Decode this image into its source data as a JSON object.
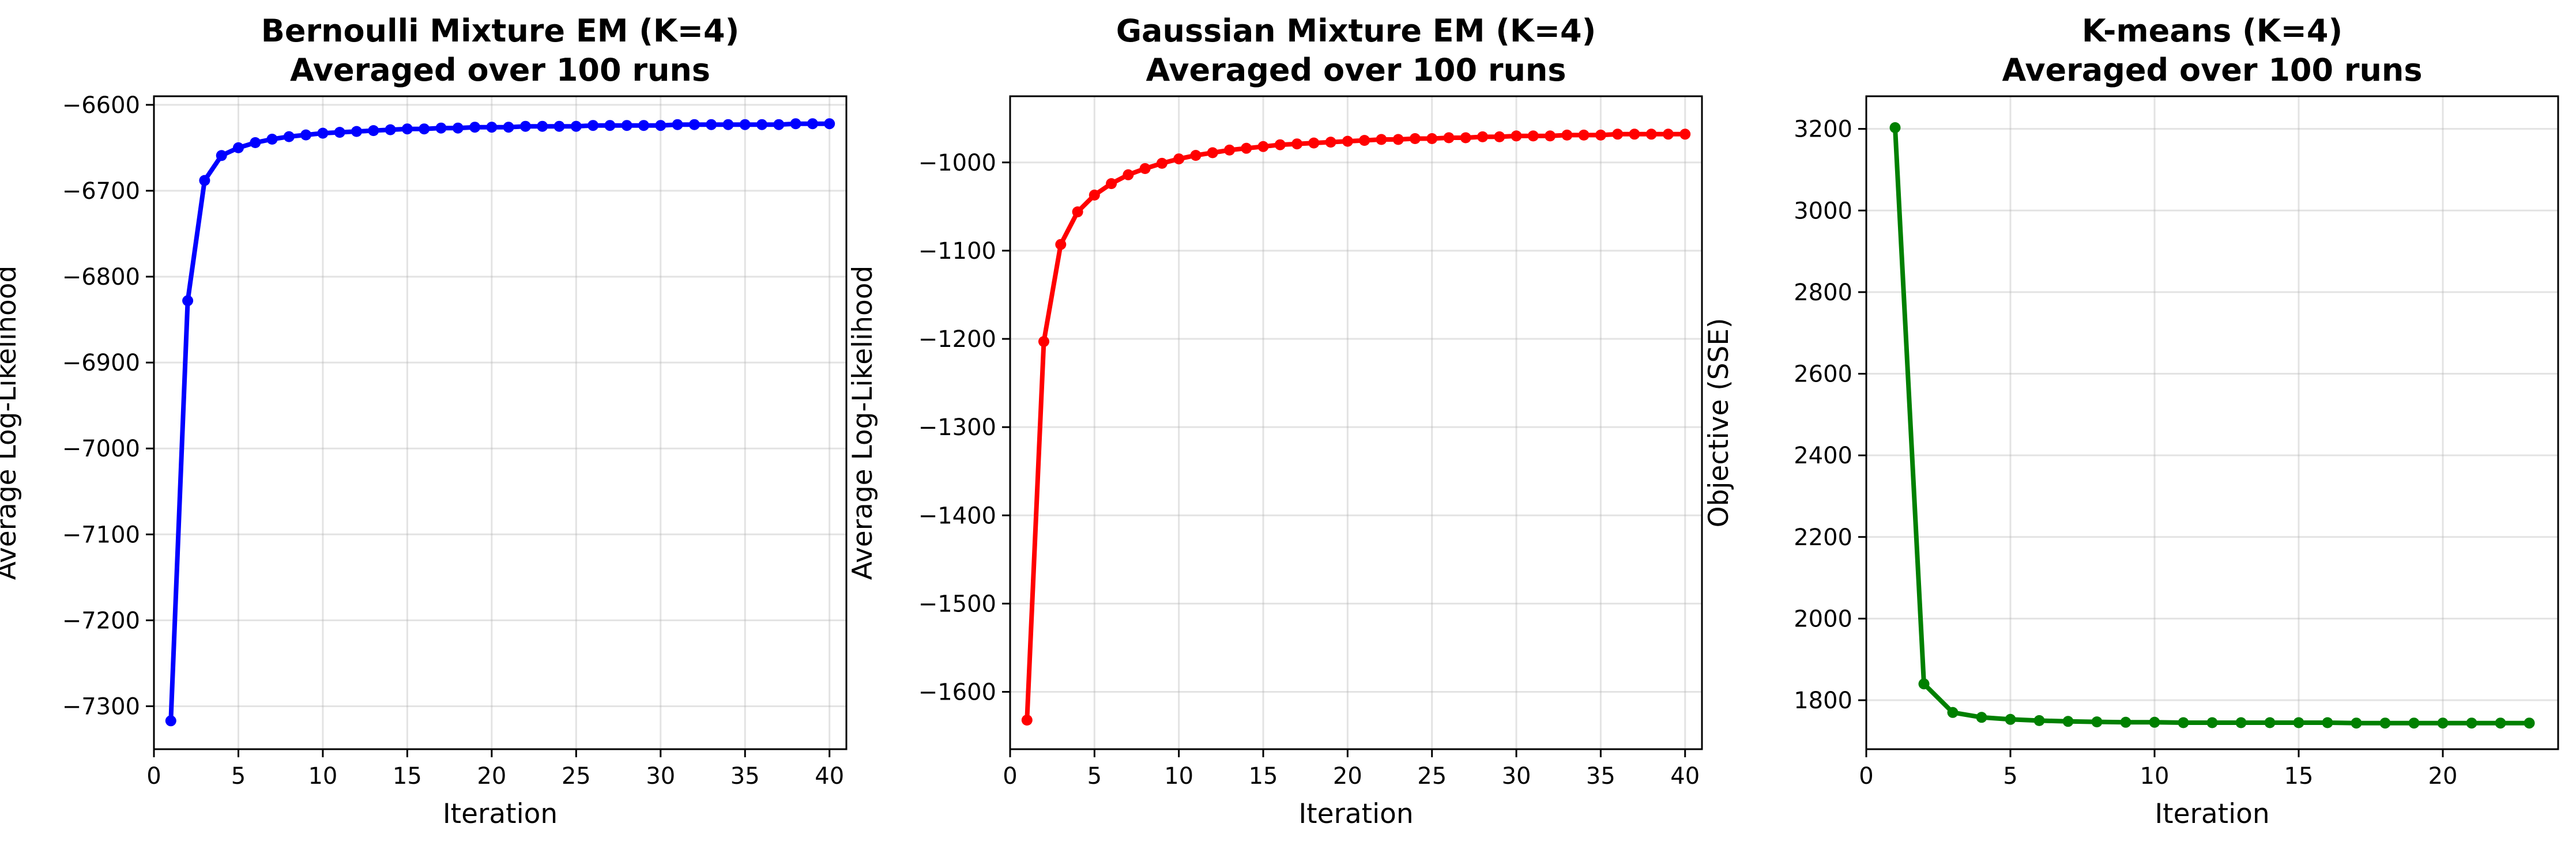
{
  "chart_data": [
    {
      "type": "line",
      "title": [
        "Bernoulli Mixture EM (K=4)",
        "Averaged over 100 runs"
      ],
      "xlabel": "Iteration",
      "ylabel": "Average Log-Likelihood",
      "xlim": [
        0,
        41
      ],
      "ylim": [
        -7350,
        -6590
      ],
      "xticks": [
        0,
        5,
        10,
        15,
        20,
        25,
        30,
        35,
        40
      ],
      "yticks": [
        -7300,
        -7200,
        -7100,
        -7000,
        -6900,
        -6800,
        -6700,
        -6600
      ],
      "grid": true,
      "color": "#0000ff",
      "series": [
        {
          "x": [
            1,
            2,
            3,
            4,
            5,
            6,
            7,
            8,
            9,
            10,
            11,
            12,
            13,
            14,
            15,
            16,
            17,
            18,
            19,
            20,
            21,
            22,
            23,
            24,
            25,
            26,
            27,
            28,
            29,
            30,
            31,
            32,
            33,
            34,
            35,
            36,
            37,
            38,
            39,
            40
          ],
          "values": [
            -7317,
            -6828,
            -6688,
            -6659,
            -6650,
            -6644,
            -6640,
            -6637,
            -6635,
            -6633,
            -6632,
            -6631,
            -6630,
            -6629,
            -6628,
            -6628,
            -6627,
            -6627,
            -6626,
            -6626,
            -6626,
            -6625,
            -6625,
            -6625,
            -6625,
            -6624,
            -6624,
            -6624,
            -6624,
            -6624,
            -6623,
            -6623,
            -6623,
            -6623,
            -6623,
            -6623,
            -6623,
            -6622,
            -6622,
            -6622
          ]
        }
      ]
    },
    {
      "type": "line",
      "title": [
        "Gaussian Mixture EM (K=4)",
        "Averaged over 100 runs"
      ],
      "xlabel": "Iteration",
      "ylabel": "Average Log-Likelihood",
      "xlim": [
        0,
        41
      ],
      "ylim": [
        -1665,
        -925
      ],
      "xticks": [
        0,
        5,
        10,
        15,
        20,
        25,
        30,
        35,
        40
      ],
      "yticks": [
        -1600,
        -1500,
        -1400,
        -1300,
        -1200,
        -1100,
        -1000
      ],
      "grid": true,
      "color": "#ff0000",
      "series": [
        {
          "x": [
            1,
            2,
            3,
            4,
            5,
            6,
            7,
            8,
            9,
            10,
            11,
            12,
            13,
            14,
            15,
            16,
            17,
            18,
            19,
            20,
            21,
            22,
            23,
            24,
            25,
            26,
            27,
            28,
            29,
            30,
            31,
            32,
            33,
            34,
            35,
            36,
            37,
            38,
            39,
            40
          ],
          "values": [
            -1632,
            -1203,
            -1093,
            -1056,
            -1037,
            -1024,
            -1014,
            -1007,
            -1001,
            -996,
            -992,
            -989,
            -986,
            -984,
            -982,
            -980,
            -979,
            -978,
            -977,
            -976,
            -975,
            -974,
            -974,
            -973,
            -973,
            -972,
            -972,
            -971,
            -971,
            -970,
            -970,
            -970,
            -969,
            -969,
            -969,
            -968,
            -968,
            -968,
            -968,
            -968
          ]
        }
      ]
    },
    {
      "type": "line",
      "title": [
        "K-means (K=4)",
        "Averaged over 100 runs"
      ],
      "xlabel": "Iteration",
      "ylabel": "Objective (SSE)",
      "xlim": [
        0,
        24
      ],
      "ylim": [
        1680,
        3280
      ],
      "xticks": [
        0,
        5,
        10,
        15,
        20
      ],
      "yticks": [
        1800,
        2000,
        2200,
        2400,
        2600,
        2800,
        3000,
        3200
      ],
      "grid": true,
      "color": "#008000",
      "series": [
        {
          "x": [
            1,
            2,
            3,
            4,
            5,
            6,
            7,
            8,
            9,
            10,
            11,
            12,
            13,
            14,
            15,
            16,
            17,
            18,
            19,
            20,
            21,
            22,
            23
          ],
          "values": [
            3203,
            1840,
            1770,
            1758,
            1753,
            1750,
            1748,
            1747,
            1746,
            1746,
            1745,
            1745,
            1745,
            1745,
            1745,
            1745,
            1744,
            1744,
            1744,
            1744,
            1744,
            1744,
            1744
          ]
        }
      ]
    }
  ]
}
